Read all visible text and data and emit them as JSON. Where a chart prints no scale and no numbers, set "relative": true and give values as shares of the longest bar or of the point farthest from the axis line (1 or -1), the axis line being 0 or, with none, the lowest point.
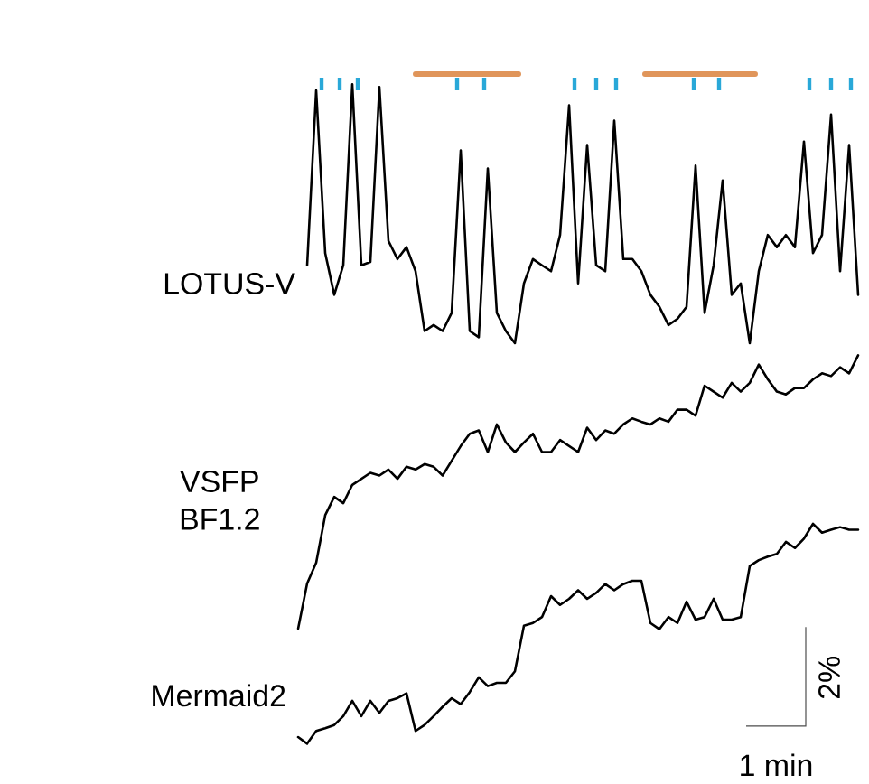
{
  "chart_data": [
    {
      "type": "line",
      "relative": true,
      "categories": [
        null,
        null,
        null,
        null,
        null,
        null,
        null,
        null,
        null,
        null,
        null,
        null,
        null,
        null,
        null,
        null,
        null,
        null,
        null,
        null,
        null,
        null,
        null,
        null,
        null,
        null,
        null,
        null,
        null,
        null,
        null,
        null,
        null,
        null,
        null,
        null,
        null,
        null,
        null,
        null,
        null,
        null,
        null,
        null,
        null,
        null,
        null,
        null,
        null,
        null,
        null,
        null,
        null,
        null,
        null,
        null,
        null,
        null,
        null,
        null,
        null,
        null,
        null
      ],
      "series": [
        {
          "name": "LOTUS-V",
          "color": "#000000",
          "values": [
            null,
            0.301,
            0.977,
            0.348,
            0.187,
            0.301,
            1,
            0.301,
            0.314,
            0.99,
            0.395,
            0.325,
            0.371,
            0.278,
            0.047,
            0.07,
            0.047,
            0.117,
            0.745,
            0.047,
            0.023,
            0.675,
            0.117,
            0.047,
            0,
            0.231,
            0.325,
            0.301,
            0.278,
            0.418,
            0.919,
            0.231,
            0.766,
            0.301,
            0.278,
            0.86,
            0.325,
            0.325,
            0.278,
            0.187,
            0.14,
            0.07,
            0.094,
            0.14,
            0.686,
            0.117,
            0.301,
            0.629,
            0.187,
            0.231,
            0,
            0.278,
            0.418,
            0.371,
            0.418,
            0.371,
            0.779,
            0.348,
            0.418,
            0.883,
            0.278,
            0.766,
            0.187
          ]
        }
      ]
    },
    {
      "type": "line",
      "relative": true,
      "categories": [
        null,
        null,
        null,
        null,
        null,
        null,
        null,
        null,
        null,
        null,
        null,
        null,
        null,
        null,
        null,
        null,
        null,
        null,
        null,
        null,
        null,
        null,
        null,
        null,
        null,
        null,
        null,
        null,
        null,
        null,
        null,
        null,
        null,
        null,
        null,
        null,
        null,
        null,
        null,
        null,
        null,
        null,
        null,
        null,
        null,
        null,
        null,
        null,
        null,
        null,
        null,
        null,
        null,
        null,
        null,
        null,
        null,
        null,
        null,
        null,
        null,
        null,
        null
      ],
      "series": [
        {
          "name": "VSFP BF1.2",
          "color": "#000000",
          "values": [
            0,
            0.165,
            0.241,
            0.415,
            0.482,
            0.459,
            0.526,
            0.548,
            0.57,
            0.56,
            0.582,
            0.548,
            0.592,
            0.582,
            0.602,
            0.592,
            0.56,
            0.614,
            0.668,
            0.713,
            0.725,
            0.646,
            0.747,
            0.681,
            0.646,
            0.681,
            0.713,
            0.646,
            0.646,
            0.69,
            0.668,
            0.646,
            0.735,
            0.69,
            0.725,
            0.713,
            0.747,
            0.769,
            0.757,
            0.747,
            0.769,
            0.757,
            0.801,
            0.801,
            0.779,
            0.889,
            0.867,
            0.845,
            0.899,
            0.867,
            0.899,
            0.966,
            0.912,
            0.867,
            0.857,
            0.88,
            0.88,
            0.912,
            0.934,
            0.924,
            0.956,
            0.934,
            1
          ]
        }
      ]
    },
    {
      "type": "line",
      "relative": true,
      "categories": [
        null,
        null,
        null,
        null,
        null,
        null,
        null,
        null,
        null,
        null,
        null,
        null,
        null,
        null,
        null,
        null,
        null,
        null,
        null,
        null,
        null,
        null,
        null,
        null,
        null,
        null,
        null,
        null,
        null,
        null,
        null,
        null,
        null,
        null,
        null,
        null,
        null,
        null,
        null,
        null,
        null,
        null,
        null,
        null,
        null,
        null,
        null,
        null,
        null,
        null,
        null,
        null,
        null,
        null,
        null,
        null,
        null,
        null,
        null,
        null,
        null,
        null,
        null
      ],
      "series": [
        {
          "name": "Mermaid2",
          "color": "#000000",
          "values": [
            0.03,
            0,
            0.058,
            0.07,
            0.085,
            0.125,
            0.195,
            0.125,
            0.195,
            0.14,
            0.195,
            0.207,
            0.229,
            0.058,
            0.085,
            0.125,
            0.168,
            0.207,
            0.18,
            0.235,
            0.302,
            0.262,
            0.277,
            0.277,
            0.329,
            0.537,
            0.549,
            0.576,
            0.671,
            0.631,
            0.659,
            0.698,
            0.659,
            0.686,
            0.726,
            0.698,
            0.726,
            0.741,
            0.741,
            0.549,
            0.521,
            0.576,
            0.549,
            0.646,
            0.564,
            0.576,
            0.659,
            0.564,
            0.564,
            0.576,
            0.808,
            0.835,
            0.851,
            0.863,
            0.918,
            0.89,
            0.933,
            1,
            0.96,
            0.973,
            0.985,
            0.973,
            0.973
          ]
        }
      ],
      "annotations": [
        "2%",
        "1 min"
      ]
    }
  ]
}
